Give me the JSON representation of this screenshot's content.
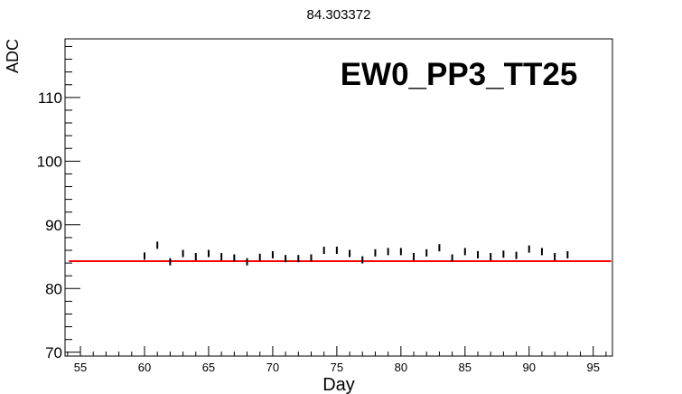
{
  "chart_data": {
    "type": "scatter",
    "title": "84.303372",
    "annotation": "EW0_PP3_TT25",
    "xlabel": "Day",
    "ylabel": "ADC",
    "xlim": [
      53.8,
      96.5
    ],
    "ylim": [
      69.4,
      119.2
    ],
    "x_ticks": [
      55,
      60,
      65,
      70,
      75,
      80,
      85,
      90,
      95
    ],
    "y_ticks": [
      70,
      80,
      90,
      100,
      110
    ],
    "grid": false,
    "fit_line": {
      "value": 84.303372,
      "color": "#ff0000"
    },
    "marker_color": "#000000",
    "points": [
      {
        "x": 60,
        "y": 85.1
      },
      {
        "x": 61,
        "y": 86.8
      },
      {
        "x": 62,
        "y": 84.2
      },
      {
        "x": 63,
        "y": 85.5
      },
      {
        "x": 64,
        "y": 85.0
      },
      {
        "x": 65,
        "y": 85.5
      },
      {
        "x": 66,
        "y": 85.0
      },
      {
        "x": 67,
        "y": 84.8
      },
      {
        "x": 68,
        "y": 84.2
      },
      {
        "x": 69,
        "y": 84.9
      },
      {
        "x": 70,
        "y": 85.3
      },
      {
        "x": 71,
        "y": 84.7
      },
      {
        "x": 72,
        "y": 84.7
      },
      {
        "x": 73,
        "y": 84.8
      },
      {
        "x": 74,
        "y": 86.0
      },
      {
        "x": 75,
        "y": 86.0
      },
      {
        "x": 76,
        "y": 85.5
      },
      {
        "x": 77,
        "y": 84.5
      },
      {
        "x": 78,
        "y": 85.6
      },
      {
        "x": 79,
        "y": 85.8
      },
      {
        "x": 80,
        "y": 85.8
      },
      {
        "x": 81,
        "y": 85.0
      },
      {
        "x": 82,
        "y": 85.6
      },
      {
        "x": 83,
        "y": 86.4
      },
      {
        "x": 84,
        "y": 84.8
      },
      {
        "x": 85,
        "y": 85.8
      },
      {
        "x": 86,
        "y": 85.3
      },
      {
        "x": 87,
        "y": 85.0
      },
      {
        "x": 88,
        "y": 85.4
      },
      {
        "x": 89,
        "y": 85.2
      },
      {
        "x": 90,
        "y": 86.2
      },
      {
        "x": 91,
        "y": 85.8
      },
      {
        "x": 92,
        "y": 85.0
      },
      {
        "x": 93,
        "y": 85.3
      }
    ]
  }
}
